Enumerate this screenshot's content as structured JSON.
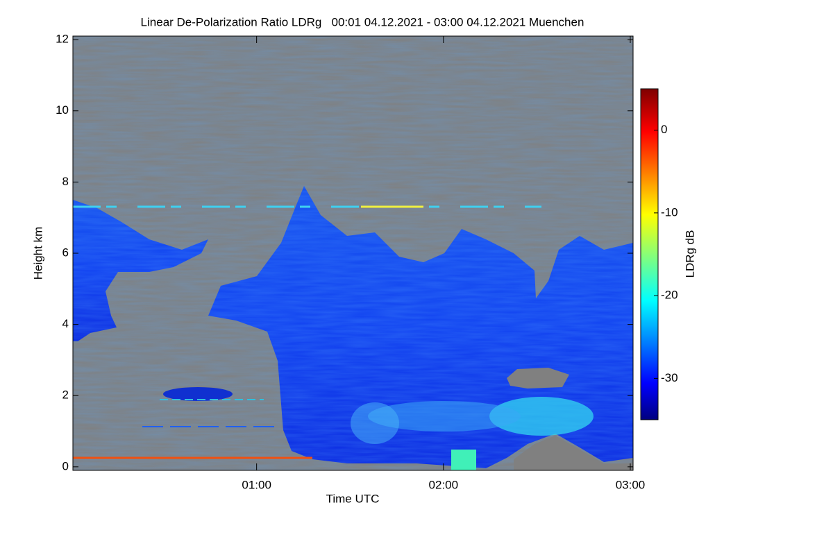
{
  "chart_data": {
    "type": "heatmap",
    "title": "Linear De-Polarization Ratio LDRg   00:01 04.12.2021 - 03:00 04.12.2021 Muenchen",
    "x_label": "Time UTC",
    "y_label": "Height km",
    "xlim": [
      0.0167,
      3.015
    ],
    "xticks": [
      {
        "value": 1,
        "label": "01:00"
      },
      {
        "value": 2,
        "label": "02:00"
      },
      {
        "value": 3,
        "label": "03:00"
      }
    ],
    "ylim": [
      -0.1,
      12.1
    ],
    "yticks": [
      0,
      2,
      4,
      6,
      8,
      10,
      12
    ],
    "colorbar": {
      "label": "LDRg dB",
      "colormap": "jet",
      "lim": [
        -35,
        5
      ],
      "ticks": [
        0,
        -10,
        -20,
        -30
      ]
    }
  }
}
